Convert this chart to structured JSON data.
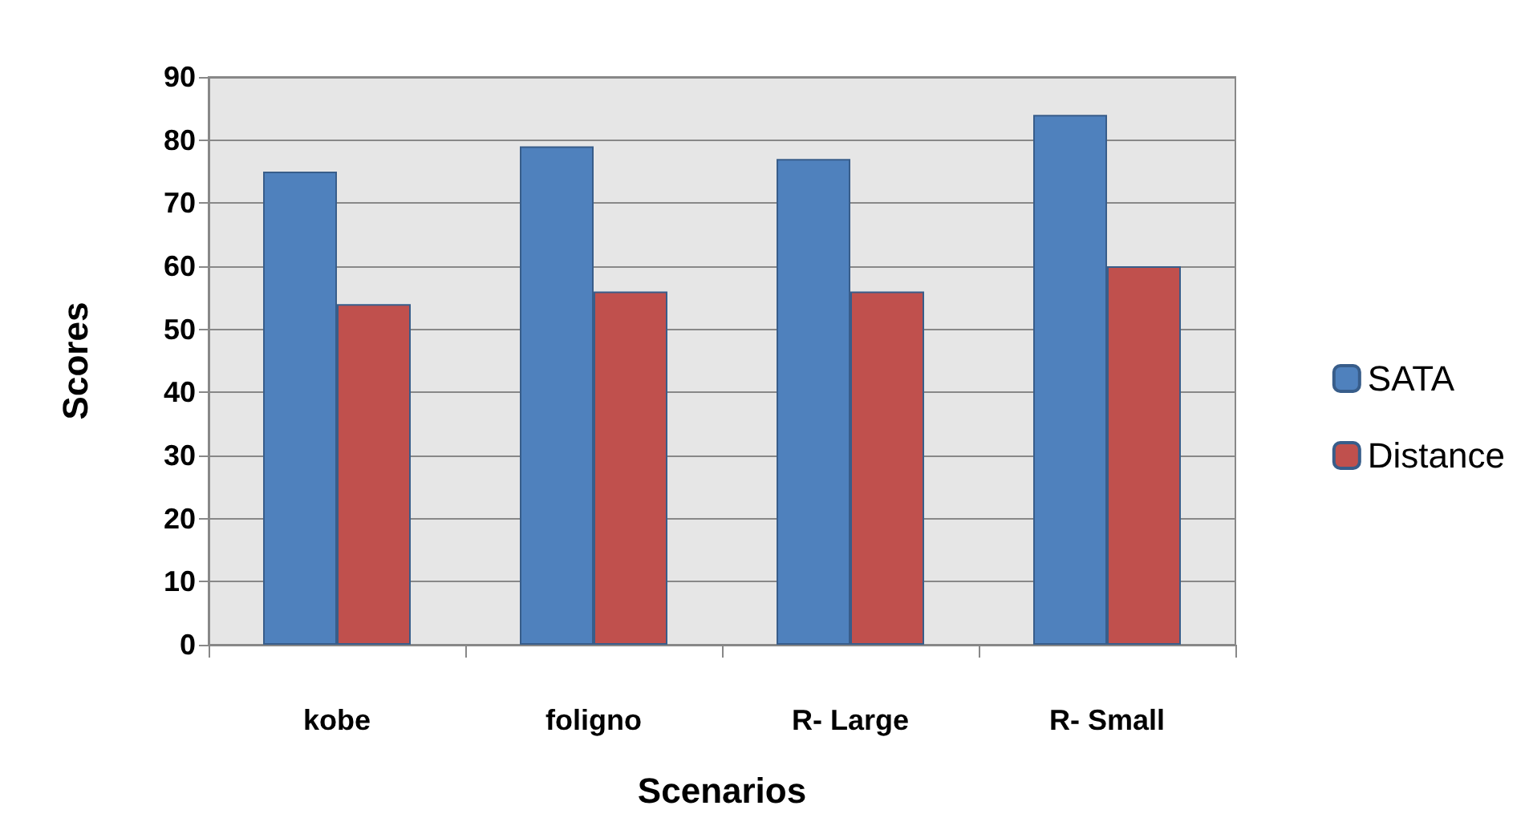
{
  "chart_data": {
    "type": "bar",
    "xlabel": "Scenarios",
    "ylabel": "Scores",
    "categories": [
      "kobe",
      "foligno",
      "R- Large",
      "R- Small"
    ],
    "series": [
      {
        "name": "SATA",
        "color": "#4f81bd",
        "values": [
          75,
          79,
          77,
          84
        ]
      },
      {
        "name": "Distance",
        "color": "#c0504d",
        "values": [
          54,
          56,
          56,
          60
        ]
      }
    ],
    "ylim": [
      0,
      90
    ],
    "yticks": [
      0,
      10,
      20,
      30,
      40,
      50,
      60,
      70,
      80,
      90
    ],
    "grid": "y",
    "legend": "right"
  }
}
